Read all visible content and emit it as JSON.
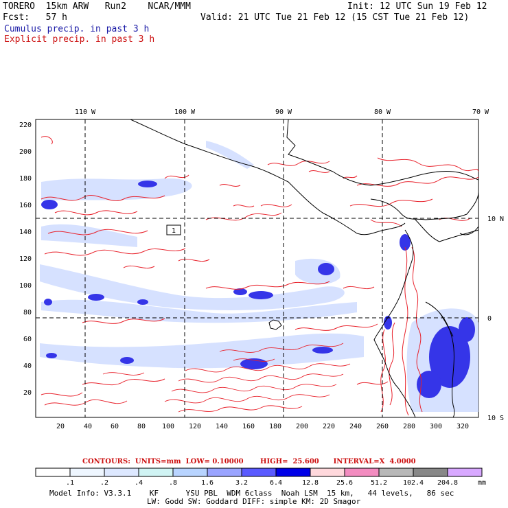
{
  "header": {
    "model": "TORERO  15km ARW   Run2    NCAR/MMM",
    "init": "Init: 12 UTC Sun 19 Feb 12",
    "fcst": "Fcst:   57 h",
    "valid": "Valid: 21 UTC Tue 21 Feb 12 (15 CST Tue 21 Feb 12)",
    "field1": "Cumulus precip. in past 3 h",
    "field2": "Explicit precip. in past 3 h"
  },
  "map": {
    "lon_labels": [
      "110 W",
      "100 W",
      "90 W",
      "80 W",
      "70 W"
    ],
    "lat_labels": [
      "10 N",
      "0",
      "10 S"
    ],
    "y_ticks": [
      "220",
      "200",
      "180",
      "160",
      "140",
      "120",
      "100",
      "80",
      "60",
      "40",
      "20"
    ],
    "x_ticks": [
      "20",
      "40",
      "60",
      "80",
      "100",
      "120",
      "140",
      "160",
      "180",
      "200",
      "220",
      "240",
      "260",
      "280",
      "300",
      "320"
    ],
    "box_label": "1",
    "colors": {
      "cumulus": "#2a2aee",
      "explicit": "#e8202a",
      "light": "#c8d8ff",
      "grid": "#000000"
    }
  },
  "contour_info": "CONTOURS:  UNITS=mm  LOW= 0.10000       HIGH=  25.600      INTERVAL=X  4.0000",
  "colorbar": {
    "values": [
      ".1",
      ".2",
      ".4",
      ".8",
      "1.6",
      "3.2",
      "6.4",
      "12.8",
      "25.6",
      "51.2",
      "102.4",
      "204.8"
    ],
    "unit": "mm",
    "colors": [
      "#ffffff",
      "#eef6ff",
      "#dde8ff",
      "#d0f4f4",
      "#b8d4ff",
      "#9aa4ff",
      "#5a5aff",
      "#0000e8",
      "#ffd8dc",
      "#f38cc0",
      "#b8b8b8",
      "#888888",
      "#d8a8ff"
    ]
  },
  "model_info": {
    "line1": "Model Info: V3.3.1    KF      YSU PBL  WDM 6class  Noah LSM  15 km,   44 levels,   86 sec",
    "line2": "LW: Godd SW: Goddard DIFF: simple KM: 2D Smagor"
  }
}
